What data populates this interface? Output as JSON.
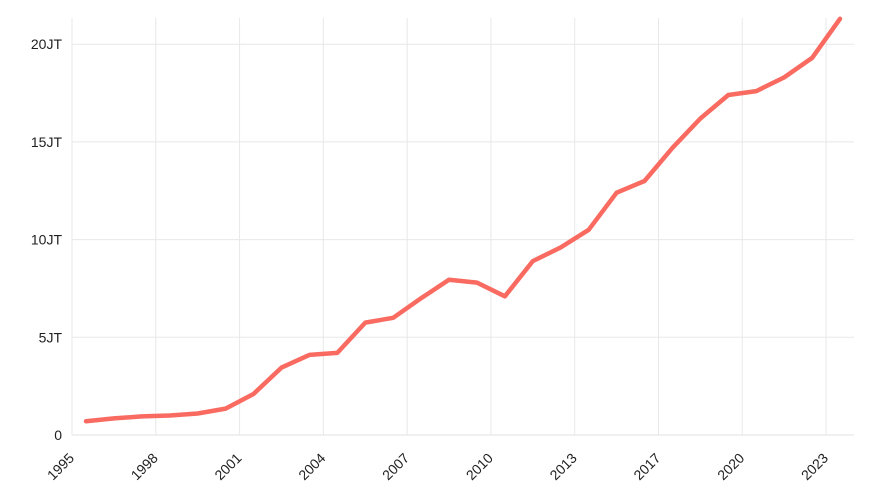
{
  "chart_data": {
    "type": "line",
    "title": "",
    "xlabel": "",
    "ylabel": "",
    "unit_suffix": "JT",
    "legend": "none",
    "grid": true,
    "ylim": [
      0,
      21.5
    ],
    "y_ticks": [
      {
        "value": 0,
        "label": "0"
      },
      {
        "value": 5,
        "label": "5JT"
      },
      {
        "value": 10,
        "label": "10JT"
      },
      {
        "value": 15,
        "label": "15JT"
      },
      {
        "value": 20,
        "label": "20JT"
      }
    ],
    "x_ticks": [
      {
        "index": 0,
        "label": "1995"
      },
      {
        "index": 3,
        "label": "1998"
      },
      {
        "index": 6,
        "label": "2001"
      },
      {
        "index": 9,
        "label": "2004"
      },
      {
        "index": 12,
        "label": "2007"
      },
      {
        "index": 15,
        "label": "2010"
      },
      {
        "index": 18,
        "label": "2013"
      },
      {
        "index": 21,
        "label": "2017"
      },
      {
        "index": 24,
        "label": "2020"
      },
      {
        "index": 27,
        "label": "2023"
      }
    ],
    "categories": [
      1995,
      1996,
      1997,
      1998,
      1999,
      2000,
      2001,
      2002,
      2003,
      2004,
      2005,
      2006,
      2007,
      2008,
      2009,
      2010,
      2011,
      2012,
      2013,
      2015,
      2016,
      2017,
      2018,
      2019,
      2020,
      2021,
      2022,
      2023
    ],
    "values": [
      0.7,
      0.85,
      0.95,
      1.0,
      1.1,
      1.35,
      2.1,
      3.45,
      4.1,
      4.2,
      5.75,
      6.0,
      7.0,
      7.95,
      7.8,
      7.1,
      8.9,
      9.6,
      10.5,
      12.4,
      13.0,
      14.7,
      16.2,
      17.4,
      17.6,
      18.3,
      19.3,
      21.3
    ],
    "colors": {
      "series": "#f96b61",
      "grid": "#e8e8e8",
      "axis_baseline": "#e2e2e2",
      "tick_text": "#1f1f1f",
      "background": "#ffffff"
    }
  }
}
